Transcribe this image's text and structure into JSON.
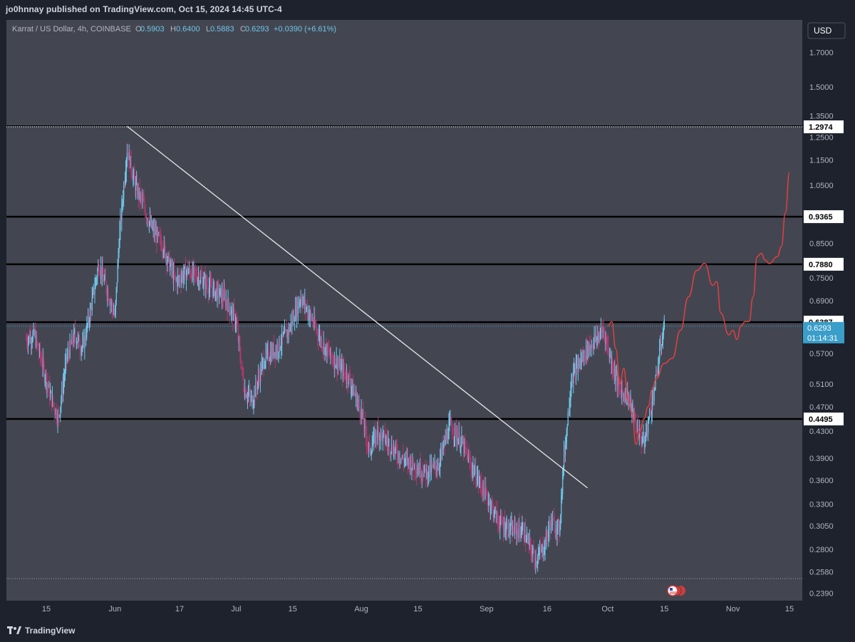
{
  "header": {
    "publish_line": "jo0hnnay published on TradingView.com, Oct 15, 2024 14:45 UTC-4"
  },
  "legend": {
    "symbol": "Karrat / US Dollar, 4h, COINBASE",
    "o_label": "O",
    "o_value": "0.5903",
    "h_label": "H",
    "h_value": "0.6400",
    "l_label": "L",
    "l_value": "0.5883",
    "c_label": "C",
    "c_value": "0.6293",
    "change": "+0.0390 (+6.61%)"
  },
  "price_axis": {
    "currency": "USD",
    "current_price": "0.6293",
    "countdown": "01:14:31"
  },
  "footer": {
    "brand": "TradingView"
  },
  "colors": {
    "background": "#1e222d",
    "plot_bg": "#434651",
    "up": "#6ec6e8",
    "down": "#b0386e",
    "forecast": "#e04040",
    "trendline": "#e6e6e6",
    "level_line": "#000000",
    "axis_text": "#b2b5be",
    "price_badge": "#3a9ec9"
  },
  "chart_data": {
    "type": "candlestick",
    "title": "Karrat / US Dollar, 4h, COINBASE",
    "y_scale": "log",
    "ylim": [
      0.23,
      1.95
    ],
    "y_ticks": [
      "1.7000",
      "1.5000",
      "1.3500",
      "1.2500",
      "1.1500",
      "1.0500",
      "0.8500",
      "0.7500",
      "0.6900",
      "0.5700",
      "0.5100",
      "0.4700",
      "0.4300",
      "0.3900",
      "0.3600",
      "0.3300",
      "0.3050",
      "0.2800",
      "0.2580",
      "0.2390"
    ],
    "x_ticks": [
      "15",
      "Jun",
      "17",
      "Jul",
      "15",
      "Aug",
      "15",
      "Sep",
      "16",
      "Oct",
      "15",
      "Nov",
      "15"
    ],
    "x_range": [
      "2024-05-10",
      "2024-11-19"
    ],
    "horizontal_levels": [
      {
        "value": 1.2974,
        "label": "1.2974",
        "style": "dotted"
      },
      {
        "value": 0.9365,
        "label": "0.9365",
        "style": "solid"
      },
      {
        "value": 0.788,
        "label": "0.7880",
        "style": "solid"
      },
      {
        "value": 0.6387,
        "label": "0.6387",
        "style": "solid"
      },
      {
        "value": 0.4495,
        "label": "0.4495",
        "style": "solid"
      }
    ],
    "trendline": {
      "from": {
        "date": "2024-06-04",
        "price": 1.3
      },
      "to": {
        "date": "2024-09-26",
        "price": 0.35
      }
    },
    "price_path": [
      [
        "2024-05-10",
        0.6
      ],
      [
        "2024-05-12",
        0.61
      ],
      [
        "2024-05-14",
        0.55
      ],
      [
        "2024-05-16",
        0.49
      ],
      [
        "2024-05-18",
        0.45
      ],
      [
        "2024-05-20",
        0.56
      ],
      [
        "2024-05-22",
        0.61
      ],
      [
        "2024-05-24",
        0.58
      ],
      [
        "2024-05-26",
        0.67
      ],
      [
        "2024-05-28",
        0.79
      ],
      [
        "2024-05-30",
        0.72
      ],
      [
        "2024-06-01",
        0.65
      ],
      [
        "2024-06-02",
        0.86
      ],
      [
        "2024-06-04",
        1.2
      ],
      [
        "2024-06-06",
        1.05
      ],
      [
        "2024-06-08",
        0.98
      ],
      [
        "2024-06-10",
        0.9
      ],
      [
        "2024-06-13",
        0.84
      ],
      [
        "2024-06-16",
        0.74
      ],
      [
        "2024-06-19",
        0.77
      ],
      [
        "2024-06-22",
        0.75
      ],
      [
        "2024-06-25",
        0.72
      ],
      [
        "2024-06-28",
        0.7
      ],
      [
        "2024-07-01",
        0.64
      ],
      [
        "2024-07-03",
        0.5
      ],
      [
        "2024-07-05",
        0.48
      ],
      [
        "2024-07-08",
        0.56
      ],
      [
        "2024-07-11",
        0.58
      ],
      [
        "2024-07-14",
        0.62
      ],
      [
        "2024-07-17",
        0.7
      ],
      [
        "2024-07-20",
        0.64
      ],
      [
        "2024-07-23",
        0.58
      ],
      [
        "2024-07-26",
        0.55
      ],
      [
        "2024-07-29",
        0.52
      ],
      [
        "2024-08-01",
        0.46
      ],
      [
        "2024-08-03",
        0.4
      ],
      [
        "2024-08-05",
        0.43
      ],
      [
        "2024-08-08",
        0.41
      ],
      [
        "2024-08-11",
        0.39
      ],
      [
        "2024-08-14",
        0.38
      ],
      [
        "2024-08-17",
        0.37
      ],
      [
        "2024-08-20",
        0.38
      ],
      [
        "2024-08-23",
        0.44
      ],
      [
        "2024-08-26",
        0.41
      ],
      [
        "2024-08-29",
        0.37
      ],
      [
        "2024-09-01",
        0.34
      ],
      [
        "2024-09-04",
        0.31
      ],
      [
        "2024-09-07",
        0.3
      ],
      [
        "2024-09-10",
        0.3
      ],
      [
        "2024-09-13",
        0.27
      ],
      [
        "2024-09-15",
        0.28
      ],
      [
        "2024-09-17",
        0.31
      ],
      [
        "2024-09-19",
        0.3
      ],
      [
        "2024-09-20",
        0.38
      ],
      [
        "2024-09-22",
        0.52
      ],
      [
        "2024-09-24",
        0.55
      ],
      [
        "2024-09-26",
        0.58
      ],
      [
        "2024-09-28",
        0.6
      ],
      [
        "2024-09-30",
        0.62
      ],
      [
        "2024-10-02",
        0.55
      ],
      [
        "2024-10-04",
        0.5
      ],
      [
        "2024-10-06",
        0.49
      ],
      [
        "2024-10-08",
        0.44
      ],
      [
        "2024-10-10",
        0.41
      ],
      [
        "2024-10-12",
        0.48
      ],
      [
        "2024-10-13",
        0.52
      ],
      [
        "2024-10-14",
        0.58
      ],
      [
        "2024-10-15",
        0.6293
      ]
    ],
    "forecast_path": [
      [
        "2024-10-01",
        0.63
      ],
      [
        "2024-10-02",
        0.64
      ],
      [
        "2024-10-03",
        0.58
      ],
      [
        "2024-10-04",
        0.51
      ],
      [
        "2024-10-05",
        0.54
      ],
      [
        "2024-10-06",
        0.48
      ],
      [
        "2024-10-07",
        0.46
      ],
      [
        "2024-10-08",
        0.41
      ],
      [
        "2024-10-09",
        0.43
      ],
      [
        "2024-10-10",
        0.45
      ],
      [
        "2024-10-11",
        0.47
      ],
      [
        "2024-10-12",
        0.5
      ],
      [
        "2024-10-13",
        0.52
      ],
      [
        "2024-10-15",
        0.55
      ],
      [
        "2024-10-17",
        0.56
      ],
      [
        "2024-10-19",
        0.62
      ],
      [
        "2024-10-21",
        0.7
      ],
      [
        "2024-10-23",
        0.77
      ],
      [
        "2024-10-25",
        0.79
      ],
      [
        "2024-10-27",
        0.73
      ],
      [
        "2024-10-28",
        0.74
      ],
      [
        "2024-10-29",
        0.66
      ],
      [
        "2024-10-31",
        0.61
      ],
      [
        "2024-11-01",
        0.62
      ],
      [
        "2024-11-02",
        0.6
      ],
      [
        "2024-11-03",
        0.63
      ],
      [
        "2024-11-04",
        0.64
      ],
      [
        "2024-11-05",
        0.64
      ],
      [
        "2024-11-06",
        0.7
      ],
      [
        "2024-11-07",
        0.81
      ],
      [
        "2024-11-08",
        0.82
      ],
      [
        "2024-11-09",
        0.8
      ],
      [
        "2024-11-10",
        0.79
      ],
      [
        "2024-11-12",
        0.81
      ],
      [
        "2024-11-13",
        0.84
      ],
      [
        "2024-11-14",
        0.95
      ],
      [
        "2024-11-15",
        1.1
      ]
    ]
  }
}
